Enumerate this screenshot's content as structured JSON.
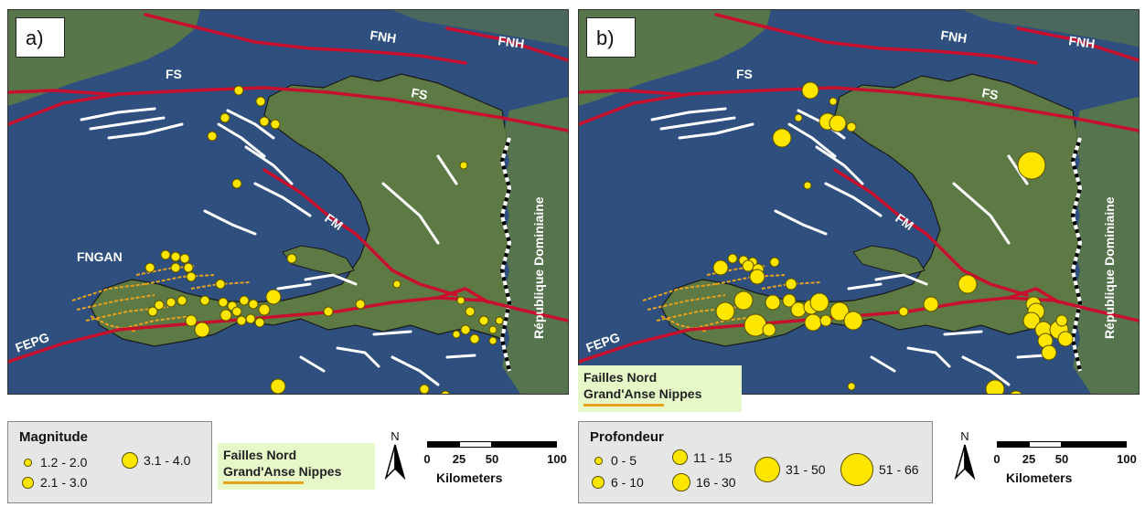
{
  "panels": [
    {
      "tag": "a)",
      "labels": {
        "fnh_left": "FNH",
        "fnh_right": "FNH",
        "fs_left": "FS",
        "fs_right": "FS",
        "fm": "FM",
        "fepg": "FEPG",
        "fngan": "FNGAN",
        "country": "République Dominiaine"
      }
    },
    {
      "tag": "b)",
      "labels": {
        "fnh_left": "FNH",
        "fnh_right": "FNH",
        "fs_left": "FS",
        "fs_right": "FS",
        "fm": "FM",
        "fepg": "FEPG",
        "country": "République Dominiaine"
      }
    }
  ],
  "legend_magnitude": {
    "title": "Magnitude",
    "items": [
      "1.2 - 2.0",
      "2.1 - 3.0",
      "3.1 - 4.0"
    ]
  },
  "legend_depth": {
    "title": "Profondeur",
    "items": [
      "0 - 5",
      "6 - 10",
      "11 - 15",
      "16 - 30",
      "31 - 50",
      "51 - 66"
    ]
  },
  "faults_legend": {
    "line1": "Failles Nord",
    "line2": "Grand'Anse Nippes"
  },
  "north_label": "N",
  "scale": {
    "ticks": [
      "0",
      "25",
      "50",
      "100"
    ],
    "unit": "Kilometers"
  },
  "colors": {
    "earthquake_marker": "#ffe600",
    "major_fault": "#c8102e",
    "fngan_fault": "#e6a21e",
    "mapped_fault": "#ffffff",
    "ocean": "#2f4f7f",
    "land": "#5d7a45"
  }
}
